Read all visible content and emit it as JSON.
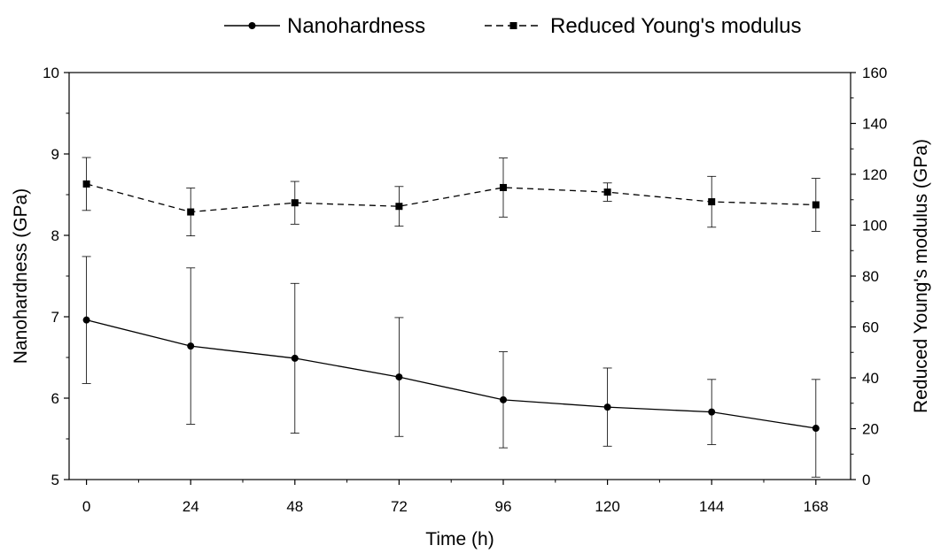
{
  "chart_data": {
    "type": "line",
    "title": "",
    "xlabel": "Time (h)",
    "ylabel_left": "Nanohardness (GPa)",
    "ylabel_right": "Reduced Young's modulus (GPa)",
    "x": [
      0,
      24,
      48,
      72,
      96,
      120,
      144,
      168
    ],
    "x_ticks": [
      "0",
      "24",
      "48",
      "72",
      "96",
      "120",
      "144",
      "168"
    ],
    "xlim": [
      -4,
      176
    ],
    "ylim_left": [
      5,
      10
    ],
    "ylim_right": [
      0,
      160
    ],
    "y_ticks_left": [
      "5",
      "6",
      "7",
      "8",
      "9",
      "10"
    ],
    "y_ticks_right": [
      "0",
      "20",
      "40",
      "60",
      "80",
      "100",
      "120",
      "140",
      "160"
    ],
    "legend_position": "top",
    "grid": false,
    "series": [
      {
        "name": "Nanohardness",
        "axis": "left",
        "marker": "circle",
        "line_style": "solid",
        "color": "#000000",
        "values": [
          6.96,
          6.64,
          6.49,
          6.26,
          5.98,
          5.89,
          5.83,
          5.63
        ],
        "error": [
          0.78,
          0.96,
          0.92,
          0.73,
          0.59,
          0.48,
          0.4,
          0.6
        ]
      },
      {
        "name": "Reduced Young's modulus",
        "axis": "right",
        "marker": "square",
        "line_style": "dashed",
        "color": "#000000",
        "values": [
          116.2,
          105.2,
          108.8,
          107.4,
          114.8,
          113.0,
          109.2,
          108.0
        ],
        "error": [
          10.4,
          9.4,
          8.4,
          7.8,
          11.6,
          3.6,
          10.0,
          10.4
        ]
      }
    ]
  }
}
